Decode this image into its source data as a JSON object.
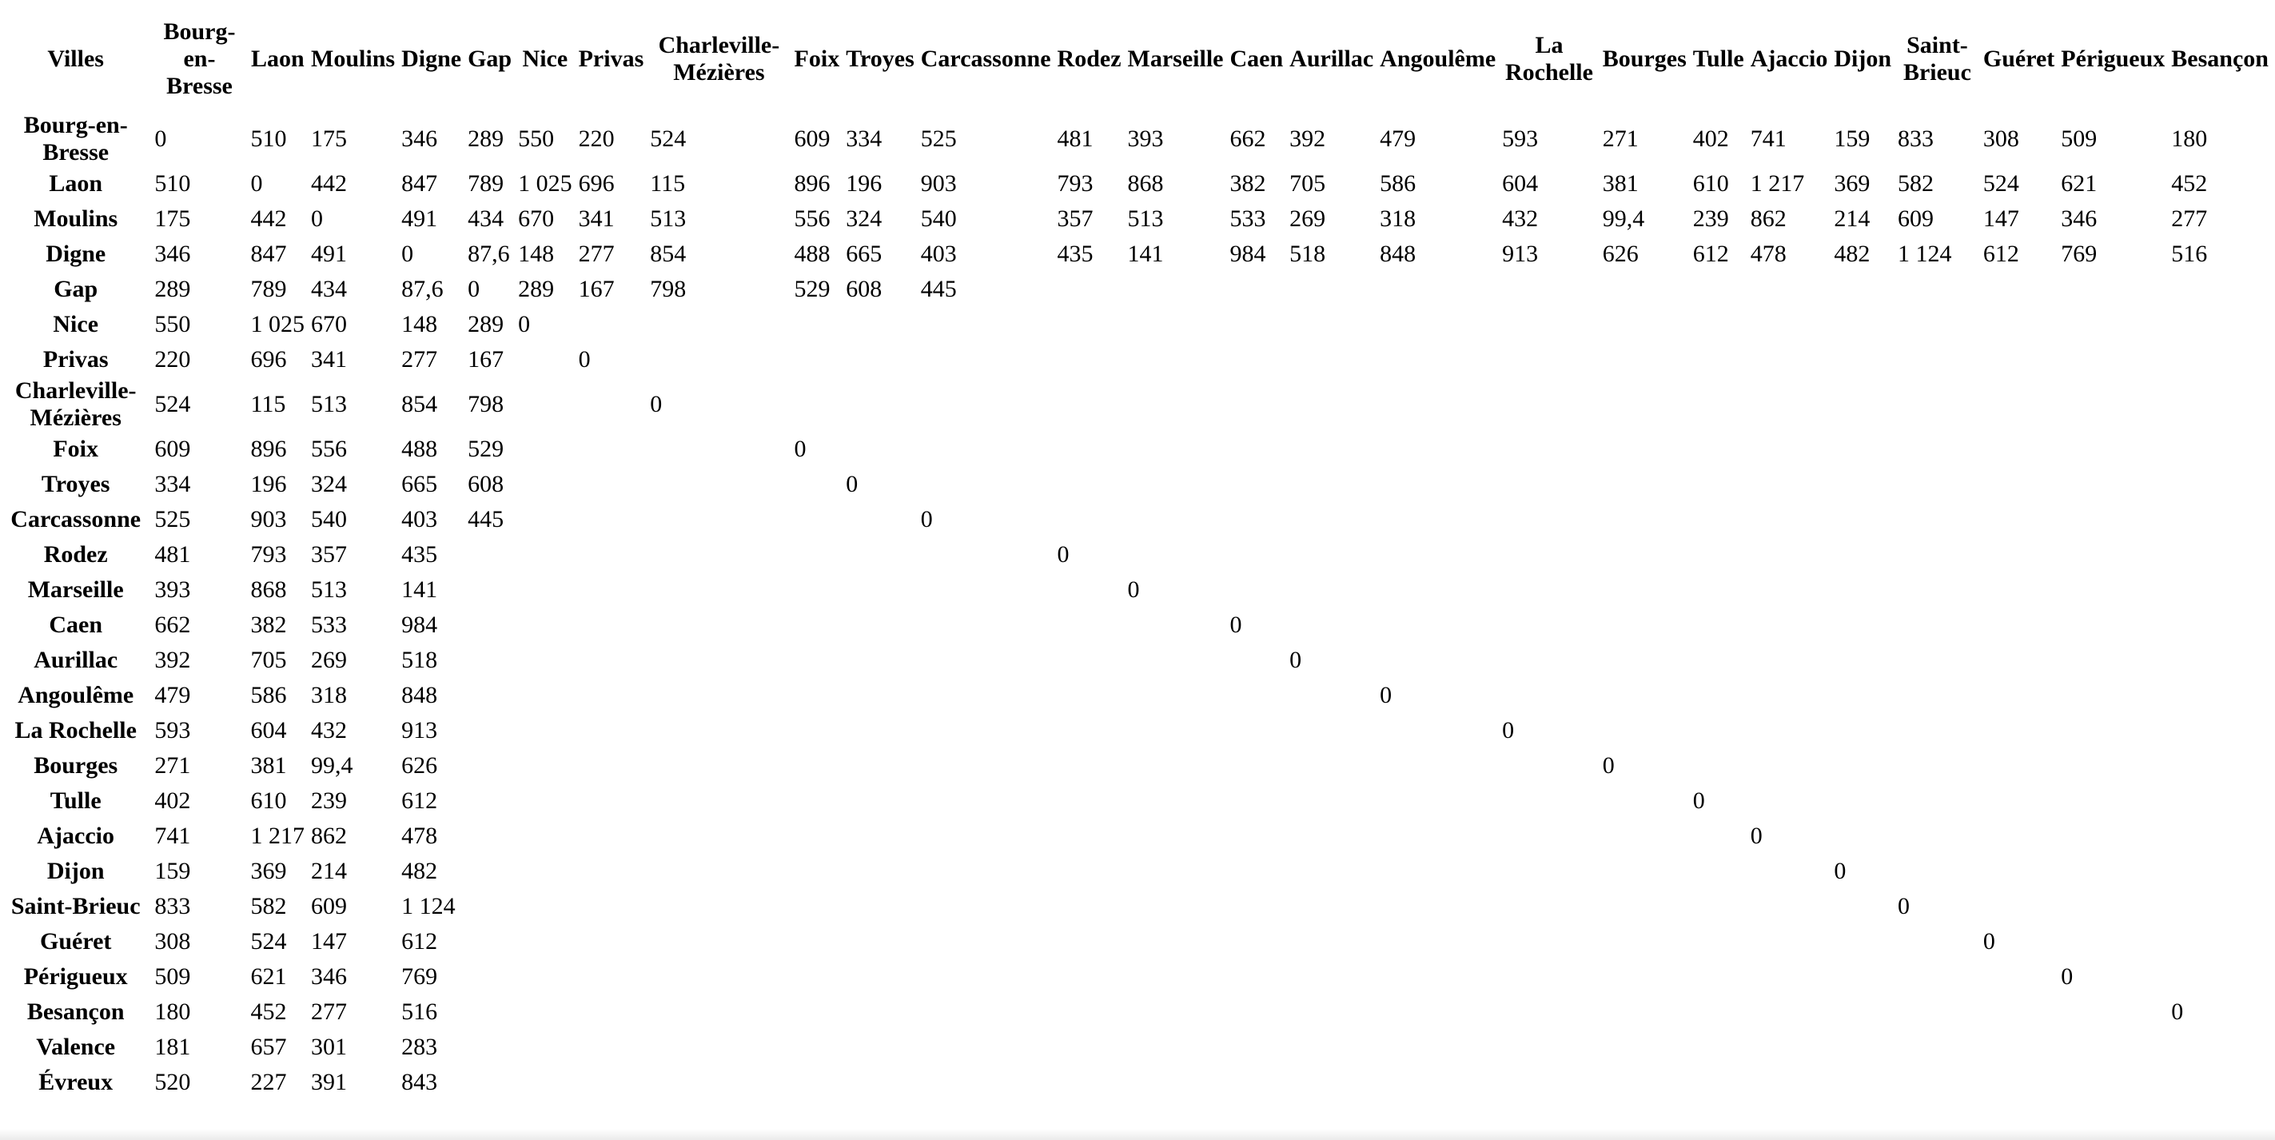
{
  "corner_label": "Villes",
  "columns": [
    "Bourg-en-Bresse",
    "Laon",
    "Moulins",
    "Digne",
    "Gap",
    "Nice",
    "Privas",
    "Charleville-Mézières",
    "Foix",
    "Troyes",
    "Carcassonne",
    "Rodez",
    "Marseille",
    "Caen",
    "Aurillac",
    "Angoulême",
    "La Rochelle",
    "Bourges",
    "Tulle",
    "Ajaccio",
    "Dijon",
    "Saint-Brieuc",
    "Guéret",
    "Périgueux",
    "Besançon"
  ],
  "rows": [
    {
      "name": "Bourg-en-Bresse",
      "cells": [
        "0",
        "510",
        "175",
        "346",
        "289",
        "550",
        "220",
        "524",
        "609",
        "334",
        "525",
        "481",
        "393",
        "662",
        "392",
        "479",
        "593",
        "271",
        "402",
        "741",
        "159",
        "833",
        "308",
        "509",
        "180"
      ]
    },
    {
      "name": "Laon",
      "cells": [
        "510",
        "0",
        "442",
        "847",
        "789",
        "1 025",
        "696",
        "115",
        "896",
        "196",
        "903",
        "793",
        "868",
        "382",
        "705",
        "586",
        "604",
        "381",
        "610",
        "1 217",
        "369",
        "582",
        "524",
        "621",
        "452"
      ]
    },
    {
      "name": "Moulins",
      "cells": [
        "175",
        "442",
        "0",
        "491",
        "434",
        "670",
        "341",
        "513",
        "556",
        "324",
        "540",
        "357",
        "513",
        "533",
        "269",
        "318",
        "432",
        "99,4",
        "239",
        "862",
        "214",
        "609",
        "147",
        "346",
        "277"
      ]
    },
    {
      "name": "Digne",
      "cells": [
        "346",
        "847",
        "491",
        "0",
        "87,6",
        "148",
        "277",
        "854",
        "488",
        "665",
        "403",
        "435",
        "141",
        "984",
        "518",
        "848",
        "913",
        "626",
        "612",
        "478",
        "482",
        "1 124",
        "612",
        "769",
        "516"
      ]
    },
    {
      "name": "Gap",
      "cells": [
        "289",
        "789",
        "434",
        "87,6",
        "0",
        "289",
        "167",
        "798",
        "529",
        "608",
        "445",
        "",
        "",
        "",
        "",
        "",
        "",
        "",
        "",
        "",
        "",
        "",
        "",
        "",
        ""
      ]
    },
    {
      "name": "Nice",
      "cells": [
        "550",
        "1 025",
        "670",
        "148",
        "289",
        "0",
        "",
        "",
        "",
        "",
        "",
        "",
        "",
        "",
        "",
        "",
        "",
        "",
        "",
        "",
        "",
        "",
        "",
        "",
        ""
      ]
    },
    {
      "name": "Privas",
      "cells": [
        "220",
        "696",
        "341",
        "277",
        "167",
        "",
        "0",
        "",
        "",
        "",
        "",
        "",
        "",
        "",
        "",
        "",
        "",
        "",
        "",
        "",
        "",
        "",
        "",
        "",
        ""
      ]
    },
    {
      "name": "Charleville-Mézières",
      "cells": [
        "524",
        "115",
        "513",
        "854",
        "798",
        "",
        "",
        "0",
        "",
        "",
        "",
        "",
        "",
        "",
        "",
        "",
        "",
        "",
        "",
        "",
        "",
        "",
        "",
        "",
        ""
      ]
    },
    {
      "name": "Foix",
      "cells": [
        "609",
        "896",
        "556",
        "488",
        "529",
        "",
        "",
        "",
        "0",
        "",
        "",
        "",
        "",
        "",
        "",
        "",
        "",
        "",
        "",
        "",
        "",
        "",
        "",
        "",
        ""
      ]
    },
    {
      "name": "Troyes",
      "cells": [
        "334",
        "196",
        "324",
        "665",
        "608",
        "",
        "",
        "",
        "",
        "0",
        "",
        "",
        "",
        "",
        "",
        "",
        "",
        "",
        "",
        "",
        "",
        "",
        "",
        "",
        ""
      ]
    },
    {
      "name": "Carcassonne",
      "cells": [
        "525",
        "903",
        "540",
        "403",
        "445",
        "",
        "",
        "",
        "",
        "",
        "0",
        "",
        "",
        "",
        "",
        "",
        "",
        "",
        "",
        "",
        "",
        "",
        "",
        "",
        ""
      ]
    },
    {
      "name": "Rodez",
      "cells": [
        "481",
        "793",
        "357",
        "435",
        "",
        "",
        "",
        "",
        "",
        "",
        "",
        "0",
        "",
        "",
        "",
        "",
        "",
        "",
        "",
        "",
        "",
        "",
        "",
        "",
        ""
      ]
    },
    {
      "name": "Marseille",
      "cells": [
        "393",
        "868",
        "513",
        "141",
        "",
        "",
        "",
        "",
        "",
        "",
        "",
        "",
        "0",
        "",
        "",
        "",
        "",
        "",
        "",
        "",
        "",
        "",
        "",
        "",
        ""
      ]
    },
    {
      "name": "Caen",
      "cells": [
        "662",
        "382",
        "533",
        "984",
        "",
        "",
        "",
        "",
        "",
        "",
        "",
        "",
        "",
        "0",
        "",
        "",
        "",
        "",
        "",
        "",
        "",
        "",
        "",
        "",
        ""
      ]
    },
    {
      "name": "Aurillac",
      "cells": [
        "392",
        "705",
        "269",
        "518",
        "",
        "",
        "",
        "",
        "",
        "",
        "",
        "",
        "",
        "",
        "0",
        "",
        "",
        "",
        "",
        "",
        "",
        "",
        "",
        "",
        ""
      ]
    },
    {
      "name": "Angoulême",
      "cells": [
        "479",
        "586",
        "318",
        "848",
        "",
        "",
        "",
        "",
        "",
        "",
        "",
        "",
        "",
        "",
        "",
        "0",
        "",
        "",
        "",
        "",
        "",
        "",
        "",
        "",
        ""
      ]
    },
    {
      "name": "La Rochelle",
      "cells": [
        "593",
        "604",
        "432",
        "913",
        "",
        "",
        "",
        "",
        "",
        "",
        "",
        "",
        "",
        "",
        "",
        "",
        "0",
        "",
        "",
        "",
        "",
        "",
        "",
        "",
        ""
      ]
    },
    {
      "name": "Bourges",
      "cells": [
        "271",
        "381",
        "99,4",
        "626",
        "",
        "",
        "",
        "",
        "",
        "",
        "",
        "",
        "",
        "",
        "",
        "",
        "",
        "0",
        "",
        "",
        "",
        "",
        "",
        "",
        ""
      ]
    },
    {
      "name": "Tulle",
      "cells": [
        "402",
        "610",
        "239",
        "612",
        "",
        "",
        "",
        "",
        "",
        "",
        "",
        "",
        "",
        "",
        "",
        "",
        "",
        "",
        "0",
        "",
        "",
        "",
        "",
        "",
        ""
      ]
    },
    {
      "name": "Ajaccio",
      "cells": [
        "741",
        "1 217",
        "862",
        "478",
        "",
        "",
        "",
        "",
        "",
        "",
        "",
        "",
        "",
        "",
        "",
        "",
        "",
        "",
        "",
        "0",
        "",
        "",
        "",
        "",
        ""
      ]
    },
    {
      "name": "Dijon",
      "cells": [
        "159",
        "369",
        "214",
        "482",
        "",
        "",
        "",
        "",
        "",
        "",
        "",
        "",
        "",
        "",
        "",
        "",
        "",
        "",
        "",
        "",
        "0",
        "",
        "",
        "",
        ""
      ]
    },
    {
      "name": "Saint-Brieuc",
      "cells": [
        "833",
        "582",
        "609",
        "1 124",
        "",
        "",
        "",
        "",
        "",
        "",
        "",
        "",
        "",
        "",
        "",
        "",
        "",
        "",
        "",
        "",
        "",
        "0",
        "",
        "",
        ""
      ]
    },
    {
      "name": "Guéret",
      "cells": [
        "308",
        "524",
        "147",
        "612",
        "",
        "",
        "",
        "",
        "",
        "",
        "",
        "",
        "",
        "",
        "",
        "",
        "",
        "",
        "",
        "",
        "",
        "",
        "0",
        "",
        ""
      ]
    },
    {
      "name": "Périgueux",
      "cells": [
        "509",
        "621",
        "346",
        "769",
        "",
        "",
        "",
        "",
        "",
        "",
        "",
        "",
        "",
        "",
        "",
        "",
        "",
        "",
        "",
        "",
        "",
        "",
        "",
        "0",
        ""
      ]
    },
    {
      "name": "Besançon",
      "cells": [
        "180",
        "452",
        "277",
        "516",
        "",
        "",
        "",
        "",
        "",
        "",
        "",
        "",
        "",
        "",
        "",
        "",
        "",
        "",
        "",
        "",
        "",
        "",
        "",
        "",
        "0"
      ]
    },
    {
      "name": "Valence",
      "cells": [
        "181",
        "657",
        "301",
        "283",
        "",
        "",
        "",
        "",
        "",
        "",
        "",
        "",
        "",
        "",
        "",
        "",
        "",
        "",
        "",
        "",
        "",
        "",
        "",
        "",
        ""
      ]
    },
    {
      "name": "Évreux",
      "cells": [
        "520",
        "227",
        "391",
        "843",
        "",
        "",
        "",
        "",
        "",
        "",
        "",
        "",
        "",
        "",
        "",
        "",
        "",
        "",
        "",
        "",
        "",
        "",
        "",
        "",
        ""
      ]
    }
  ]
}
